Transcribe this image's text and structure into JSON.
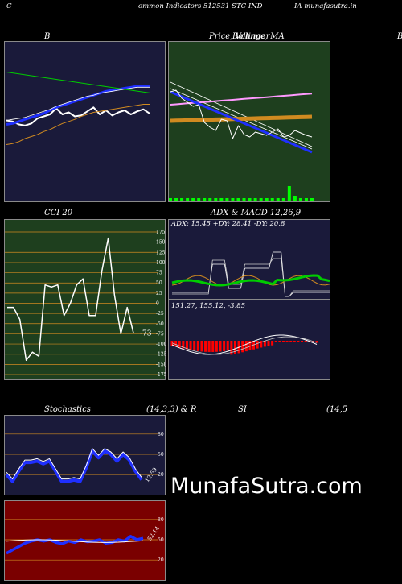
{
  "header": {
    "left": "C",
    "center": "ommon  Indicators 512531 STC IND",
    "right": "IA munafasutra.in"
  },
  "panels": {
    "bollinger_title": "B",
    "price_title": "Price,  Volume,  MA",
    "price_title_overlap": "Bollinger",
    "right_edge_letter": "B",
    "cci_title": "CCI 20",
    "adx_title": "ADX  & MACD 12,26,9",
    "adx_readout": "ADX: 15.45  +DY: 28.41 -DY: 20.8",
    "macd_readout": "151.27,  155.12,  -3.85",
    "cci_value_label": "-73",
    "stoch_title_left": "Stochastics",
    "stoch_title_mid": "(14,3,3) & R",
    "stoch_title_si": "SI",
    "stoch_title_right": "(14,5",
    "stoch_value_label": "12.59",
    "rsi_value_label": "52.14"
  },
  "watermark": "MunafaSutra.com",
  "colors": {
    "dark_navy": "#1a1a3a",
    "dark_green": "#1e3f1e",
    "dark_red": "#7a0000",
    "orange": "#d08a20",
    "blue": "#1f2fff",
    "green_line": "#00cc00"
  },
  "chart_data": [
    {
      "type": "line",
      "name": "bollinger",
      "series": [
        {
          "values": [
            112,
            111,
            108,
            107,
            109,
            114,
            116,
            118,
            124,
            118,
            120,
            116,
            117,
            121,
            125,
            118,
            122,
            117,
            120,
            122,
            118,
            121,
            123,
            119
          ]
        },
        {
          "values": [
            108,
            109,
            111,
            113,
            115,
            117,
            119,
            122,
            125,
            127,
            129,
            131,
            133,
            135,
            137,
            139,
            141,
            142,
            143,
            144,
            145,
            146,
            146,
            146
          ]
        },
        {
          "values": [
            112,
            113,
            114,
            115,
            117,
            119,
            121,
            123,
            126,
            128,
            130,
            132,
            134,
            136,
            137,
            139,
            140,
            141,
            142,
            143,
            144,
            145,
            145,
            145
          ]
        },
        {
          "values": [
            88,
            89,
            91,
            94,
            96,
            98,
            101,
            103,
            106,
            109,
            111,
            113,
            116,
            118,
            120,
            121,
            122,
            123,
            124,
            125,
            126,
            127,
            128,
            128
          ]
        }
      ]
    },
    {
      "type": "line",
      "name": "cci",
      "yticks": [
        175,
        150,
        125,
        100,
        75,
        50,
        25,
        0,
        -25,
        -50,
        -75,
        -100,
        -125,
        -150,
        -175
      ],
      "values": [
        -10,
        -10,
        -40,
        -140,
        -120,
        -130,
        45,
        40,
        45,
        -30,
        0,
        45,
        60,
        -30,
        -30,
        80,
        160,
        20,
        -75,
        -10,
        -73
      ]
    },
    {
      "type": "line",
      "name": "stochastics",
      "yticks": [
        80,
        50,
        20
      ],
      "values": [
        20,
        10,
        25,
        38,
        38,
        40,
        36,
        40,
        25,
        10,
        10,
        12,
        10,
        30,
        55,
        45,
        55,
        50,
        40,
        50,
        42,
        25,
        12.59
      ]
    },
    {
      "type": "line",
      "name": "rsi",
      "yticks": [
        80,
        50,
        20
      ],
      "values": [
        30,
        35,
        40,
        45,
        48,
        50,
        48,
        50,
        46,
        44,
        48,
        46,
        50,
        47,
        48,
        50,
        45,
        46,
        50,
        48,
        55,
        50,
        52.14
      ]
    }
  ]
}
